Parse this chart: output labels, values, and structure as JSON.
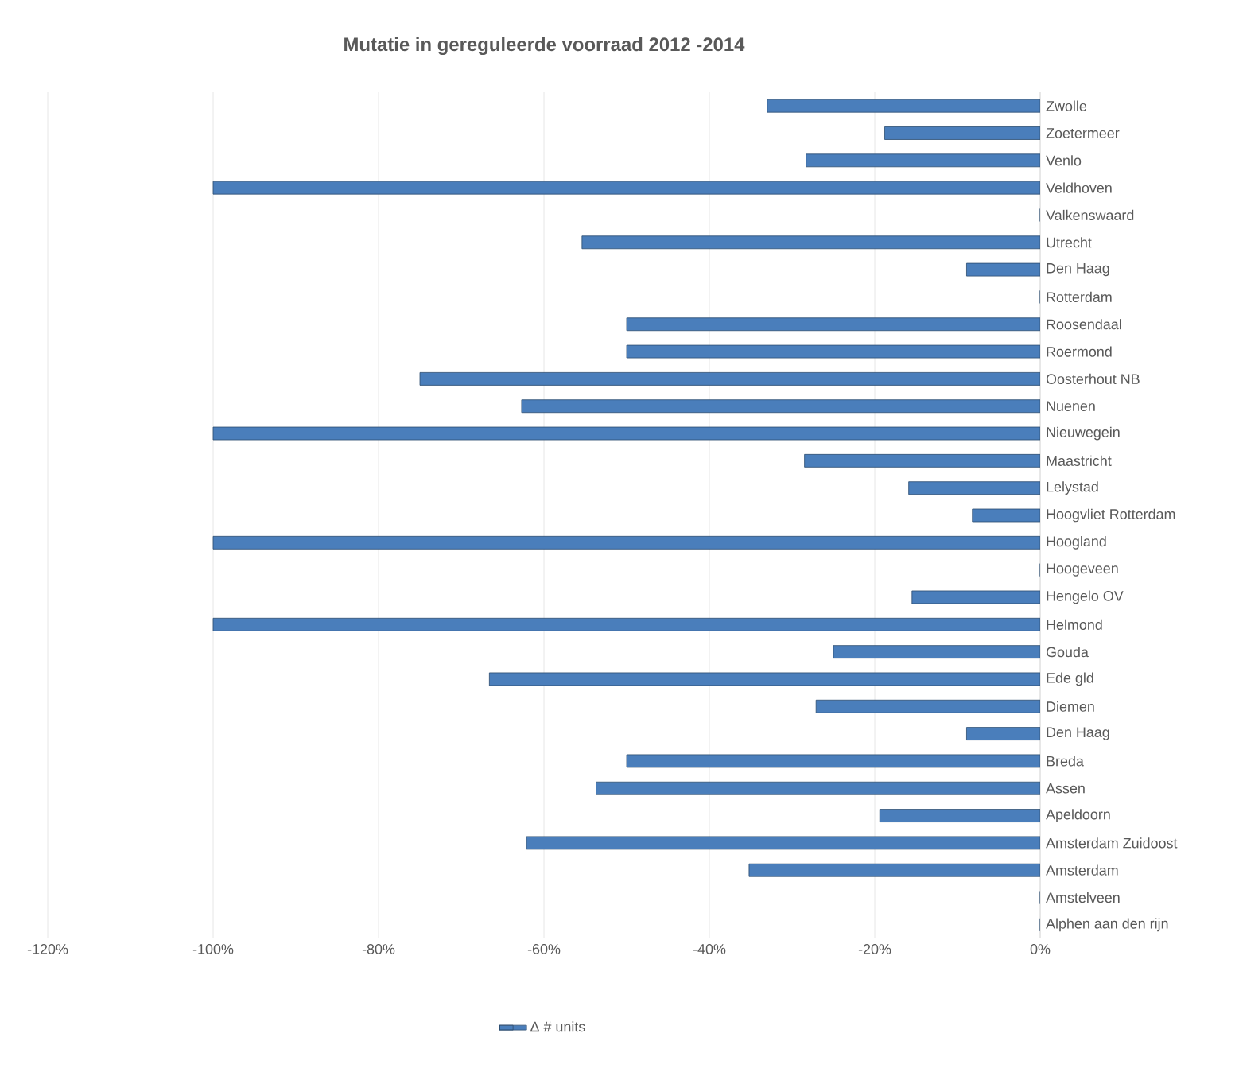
{
  "chart_data": {
    "type": "bar",
    "orientation": "horizontal",
    "title": "Mutatie in gereguleerde voorraad 2012 -2014",
    "categories": [
      "Zwolle",
      "Zoetermeer",
      "Venlo",
      "Veldhoven",
      "Valkenswaard",
      "Utrecht",
      "Den Haag",
      "Rotterdam",
      "Roosendaal",
      "Roermond",
      "Oosterhout NB",
      "Nuenen",
      "Nieuwegein",
      "Maastricht",
      "Lelystad",
      "Hoogvliet Rotterdam",
      "Hoogland",
      "Hoogeveen",
      "Hengelo OV",
      "Helmond",
      "Gouda",
      "Ede gld",
      "Diemen",
      "Den Haag",
      "Breda",
      "Assen",
      "Apeldoorn",
      "Amsterdam Zuidoost",
      "Amsterdam",
      "Amstelveen",
      "Alphen aan den rijn"
    ],
    "series": [
      {
        "name": "Δ # units",
        "color": "#4a7ebb",
        "values": [
          -33,
          -18.8,
          -28.3,
          -100,
          0,
          -55.4,
          -8.9,
          0,
          -50,
          -50,
          -75,
          -62.7,
          -100,
          -28.5,
          -15.9,
          -8.2,
          -100,
          0,
          -15.5,
          -100,
          -25,
          -66.6,
          -27.1,
          -8.9,
          -50,
          -53.7,
          -19.4,
          -62.1,
          -35.2,
          0,
          0
        ]
      }
    ],
    "xlim": [
      -120,
      0
    ],
    "xticks": [
      {
        "value": -120,
        "label": "-120%"
      },
      {
        "value": -100,
        "label": "-100%"
      },
      {
        "value": -80,
        "label": "-80%"
      },
      {
        "value": -60,
        "label": "-60%"
      },
      {
        "value": -40,
        "label": "-40%"
      },
      {
        "value": -20,
        "label": "-20%"
      },
      {
        "value": 0,
        "label": "0%"
      }
    ],
    "grid": "x",
    "legend": "bottom"
  }
}
